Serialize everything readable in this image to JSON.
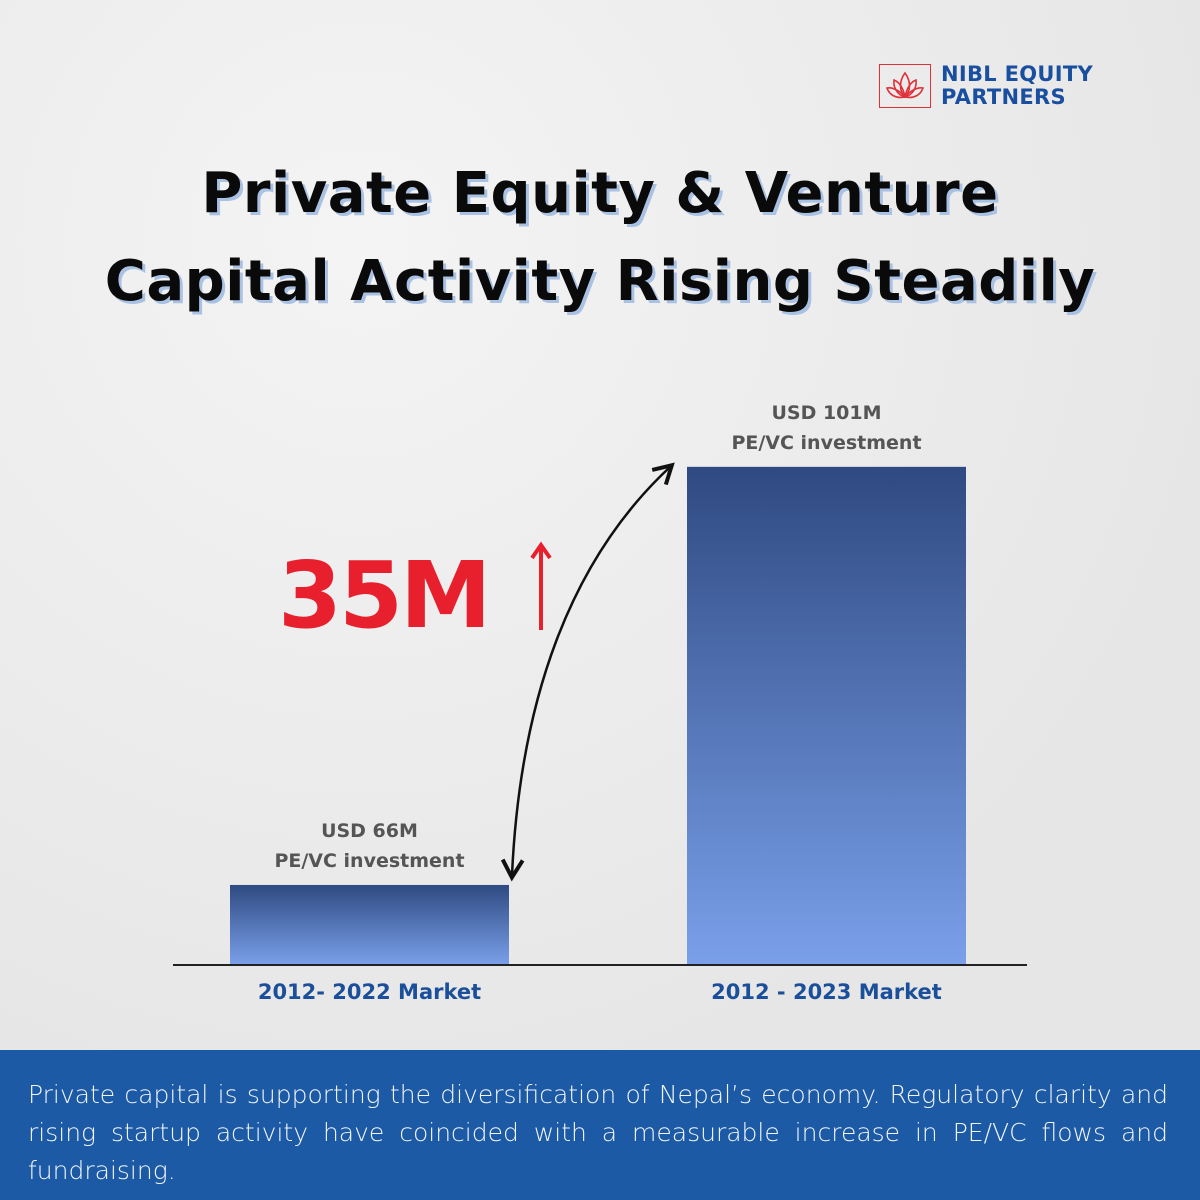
{
  "brand": {
    "line1": "NIBL EQUITY",
    "line2": "PARTNERS",
    "icon": "lotus-icon",
    "accent": "#e0303a",
    "brand_color": "#1a4fa0"
  },
  "title": {
    "line1": "Private Equity & Venture",
    "line2": "Capital Activity Rising Steadily"
  },
  "chart_data": {
    "type": "bar",
    "title": "Private Equity & Venture Capital Activity Rising Steadily",
    "categories": [
      "2012- 2022 Market",
      "2012 - 2023 Market"
    ],
    "values": [
      66,
      101
    ],
    "unit": "USD M",
    "data_labels": [
      {
        "line1": "USD 66M",
        "line2": "PE/VC investment"
      },
      {
        "line1": "USD 101M",
        "line2": "PE/VC  investment"
      }
    ],
    "annotation": {
      "text": "35M",
      "icon": "arrow-up-icon",
      "color": "#e8202e"
    },
    "xlabel": "",
    "ylabel": "",
    "ylim": [
      59.3,
      104
    ],
    "grid": false,
    "bar_colors": {
      "top": "#2f4a82",
      "bottom": "#7aa0ea"
    }
  },
  "footer": {
    "text": "Private capital is supporting the diversification of Nepal’s economy. Regulatory clarity and rising startup activity have coincided with a measurable increase in PE/VC flows and fundraising."
  }
}
